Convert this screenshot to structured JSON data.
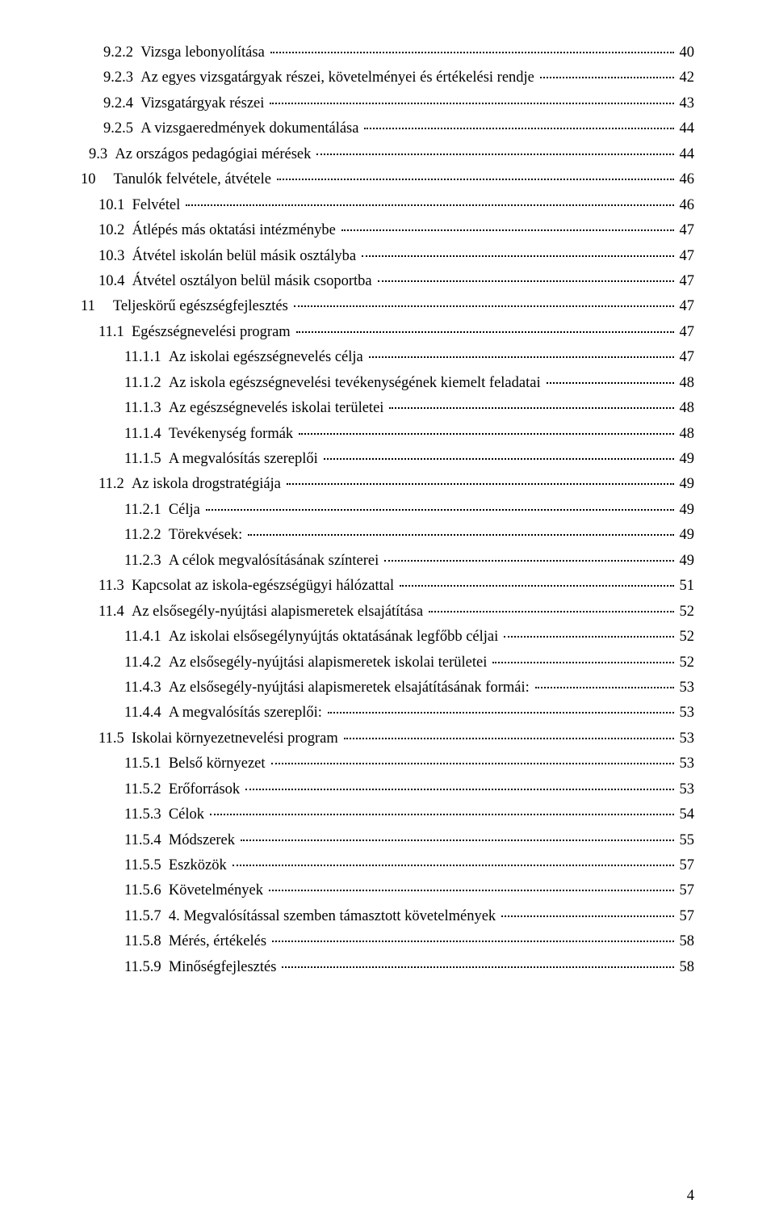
{
  "pageNumber": "4",
  "toc": {
    "font_family": "Times New Roman",
    "font_size_pt": 14,
    "text_color": "#000000",
    "background_color": "#ffffff",
    "leader_style": "dotted",
    "entries": [
      {
        "indent": "lvl-2",
        "num": "9.2.2",
        "title": "Vizsga lebonyolítása",
        "page": "40"
      },
      {
        "indent": "lvl-2",
        "num": "9.2.3",
        "title": "Az egyes vizsgatárgyak részei, követelményei és értékelési rendje",
        "page": "42"
      },
      {
        "indent": "lvl-2",
        "num": "9.2.4",
        "title": "Vizsgatárgyak részei",
        "page": "43"
      },
      {
        "indent": "lvl-2",
        "num": "9.2.5",
        "title": "A vizsgaeredmények dokumentálása",
        "page": "44"
      },
      {
        "indent": "lvl-1b",
        "num": "9.3",
        "title": "Az országos pedagógiai mérések",
        "page": "44"
      },
      {
        "indent": "lvl-0",
        "num": "10",
        "numClass": "pad-l1",
        "title": "Tanulók felvétele, átvétele",
        "page": "46"
      },
      {
        "indent": "lvl-1c",
        "num": "10.1",
        "title": "Felvétel",
        "page": "46"
      },
      {
        "indent": "lvl-1c",
        "num": "10.2",
        "title": "Átlépés más oktatási intézménybe",
        "page": "47"
      },
      {
        "indent": "lvl-1c",
        "num": "10.3",
        "title": "Átvétel iskolán belül másik osztályba",
        "page": "47"
      },
      {
        "indent": "lvl-1c",
        "num": "10.4",
        "title": "Átvétel osztályon belül másik csoportba",
        "page": "47"
      },
      {
        "indent": "lvl-0",
        "num": "11",
        "numClass": "pad-l1",
        "title": "Teljeskörű egészségfejlesztés",
        "page": "47"
      },
      {
        "indent": "lvl-1d",
        "num": "11.1",
        "title": "Egészségnevelési program",
        "page": "47"
      },
      {
        "indent": "lvl-2c",
        "num": "11.1.1",
        "title": "Az iskolai egészségnevelés célja",
        "page": "47"
      },
      {
        "indent": "lvl-2c",
        "num": "11.1.2",
        "title": "Az iskola egészségnevelési tevékenységének kiemelt feladatai",
        "page": "48"
      },
      {
        "indent": "lvl-2c",
        "num": "11.1.3",
        "title": "Az egészségnevelés iskolai területei",
        "page": "48"
      },
      {
        "indent": "lvl-2c",
        "num": "11.1.4",
        "title": "Tevékenység formák",
        "page": "48"
      },
      {
        "indent": "lvl-2c",
        "num": "11.1.5",
        "title": "A megvalósítás szereplői",
        "page": "49"
      },
      {
        "indent": "lvl-1d",
        "num": "11.2",
        "title": "Az iskola drogstratégiája",
        "page": "49"
      },
      {
        "indent": "lvl-2c",
        "num": "11.2.1",
        "title": "Célja",
        "page": "49"
      },
      {
        "indent": "lvl-2c",
        "num": "11.2.2",
        "title": "Törekvések:",
        "page": "49"
      },
      {
        "indent": "lvl-2c",
        "num": "11.2.3",
        "title": "A célok megvalósításának színterei",
        "page": "49"
      },
      {
        "indent": "lvl-1d",
        "num": "11.3",
        "title": "Kapcsolat az iskola-egészségügyi hálózattal",
        "page": "51"
      },
      {
        "indent": "lvl-1d",
        "num": "11.4",
        "title": "Az elsősegély-nyújtási alapismeretek elsajátítása",
        "page": "52"
      },
      {
        "indent": "lvl-2c",
        "num": "11.4.1",
        "title": "Az iskolai elsősegélynyújtás oktatásának legfőbb céljai",
        "page": "52"
      },
      {
        "indent": "lvl-2c",
        "num": "11.4.2",
        "title": "Az elsősegély-nyújtási alapismeretek iskolai területei",
        "page": "52"
      },
      {
        "indent": "lvl-2c",
        "num": "11.4.3",
        "title": "Az elsősegély-nyújtási alapismeretek elsajátításának formái:",
        "page": "53"
      },
      {
        "indent": "lvl-2c",
        "num": "11.4.4",
        "title": "A megvalósítás szereplői:",
        "page": "53"
      },
      {
        "indent": "lvl-1d",
        "num": "11.5",
        "title": "Iskolai környezetnevelési program",
        "page": "53"
      },
      {
        "indent": "lvl-2c",
        "num": "11.5.1",
        "title": "Belső környezet",
        "page": "53"
      },
      {
        "indent": "lvl-2c",
        "num": "11.5.2",
        "title": "Erőforrások",
        "page": "53"
      },
      {
        "indent": "lvl-2c",
        "num": "11.5.3",
        "title": "Célok",
        "page": "54"
      },
      {
        "indent": "lvl-2c",
        "num": "11.5.4",
        "title": "Módszerek",
        "page": "55"
      },
      {
        "indent": "lvl-2c",
        "num": "11.5.5",
        "title": "Eszközök",
        "page": "57"
      },
      {
        "indent": "lvl-2c",
        "num": "11.5.6",
        "title": "Követelmények",
        "page": "57"
      },
      {
        "indent": "lvl-2c",
        "num": "11.5.7",
        "title": "4. Megvalósítással szemben támasztott követelmények",
        "page": "57"
      },
      {
        "indent": "lvl-2c",
        "num": "11.5.8",
        "title": "Mérés, értékelés",
        "page": "58"
      },
      {
        "indent": "lvl-2c",
        "num": "11.5.9",
        "title": "Minőségfejlesztés",
        "page": "58"
      }
    ]
  }
}
